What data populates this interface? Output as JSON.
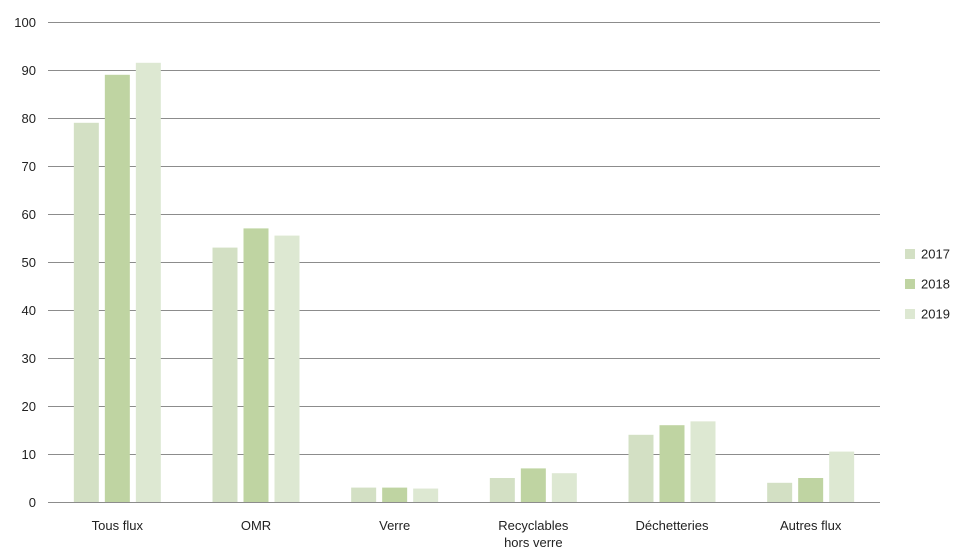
{
  "chart_data": {
    "type": "bar",
    "title": "",
    "xlabel": "",
    "ylabel": "",
    "ylim": [
      0,
      100
    ],
    "yticks": [
      0,
      10,
      20,
      30,
      40,
      50,
      60,
      70,
      80,
      90,
      100
    ],
    "grid": true,
    "legend_position": "right",
    "categories": [
      [
        "Tous flux"
      ],
      [
        "OMR"
      ],
      [
        "Verre"
      ],
      [
        "Recyclables",
        "hors verre"
      ],
      [
        "Déchetteries"
      ],
      [
        "Autres flux"
      ]
    ],
    "series": [
      {
        "name": "2017",
        "color": "#d3e0c4",
        "values": [
          79,
          53,
          3,
          5,
          14,
          4
        ]
      },
      {
        "name": "2018",
        "color": "#bfd4a2",
        "values": [
          89,
          57,
          3,
          7,
          16,
          5
        ]
      },
      {
        "name": "2019",
        "color": "#dde8d2",
        "values": [
          91.5,
          55.5,
          2.8,
          6,
          16.8,
          10.5
        ]
      }
    ]
  }
}
